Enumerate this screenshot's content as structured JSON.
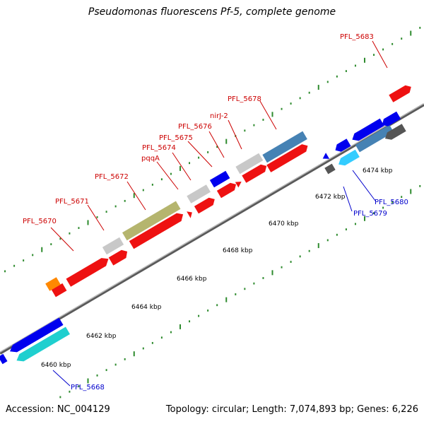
{
  "title": "Pseudomonas fluorescens Pf-5, complete genome",
  "footer": {
    "accession": "Accession: NC_004129",
    "summary": "Topology: circular; Length: 7,074,893 bp; Genes: 6,226"
  },
  "scale_labels": [
    "6460 kbp",
    "6462 kbp",
    "6464 kbp",
    "6466 kbp",
    "6468 kbp",
    "6470 kbp",
    "6472 kbp",
    "6474 kbp"
  ],
  "gene_labels": {
    "forward": [
      "PFL_5670",
      "PFL_5671",
      "PFL_5672",
      "pqqA",
      "PFL_5674",
      "PFL_5675",
      "PFL_5676",
      "nirJ-2",
      "PFL_5678",
      "PFL_5683"
    ],
    "reverse": [
      "PFL_5668",
      "PFL_5679",
      "PFL_5680"
    ]
  },
  "colors": {
    "forward_label": "#cc0000",
    "reverse_label": "#0000cc",
    "backbone": "#888888",
    "tick_dots": "#2e8b2e"
  }
}
